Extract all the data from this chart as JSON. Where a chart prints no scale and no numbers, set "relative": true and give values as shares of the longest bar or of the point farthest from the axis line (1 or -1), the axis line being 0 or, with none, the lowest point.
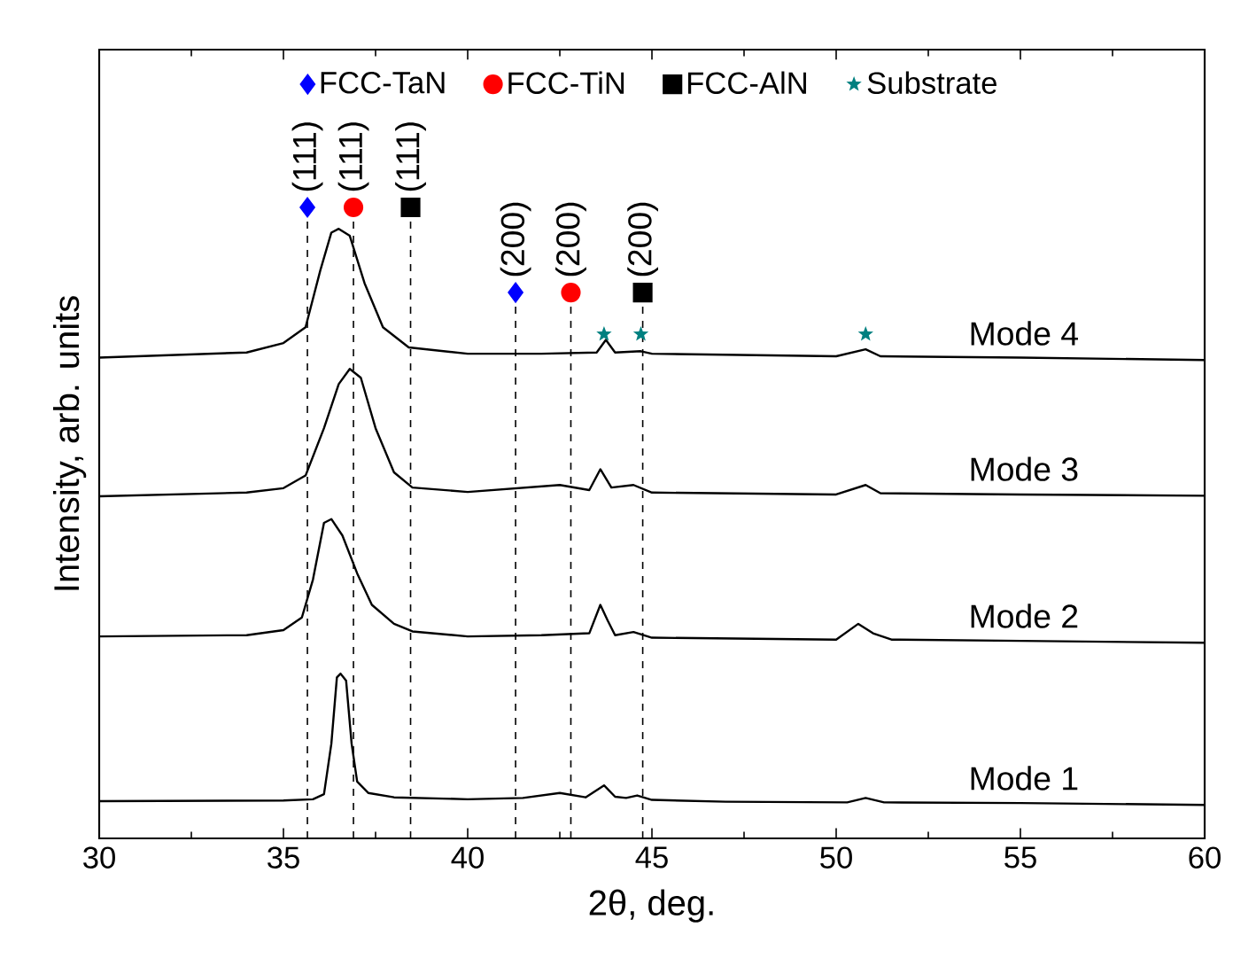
{
  "chart_data": {
    "type": "line",
    "xlabel": "2θ, deg.",
    "ylabel": "Intensity, arb. units",
    "relative": true,
    "xlim": [
      30,
      60
    ],
    "xticks": [
      30,
      35,
      40,
      45,
      50,
      55,
      60
    ],
    "legend": "top",
    "line_style": "solid",
    "series": [
      {
        "name": "Mode 1",
        "color": "#000000",
        "x": [
          30,
          35,
          35.8,
          36.1,
          36.3,
          36.45,
          36.55,
          36.7,
          36.85,
          37.0,
          37.3,
          38,
          40,
          41.5,
          42.5,
          43.2,
          43.7,
          44.0,
          44.3,
          44.6,
          45,
          47,
          50.3,
          50.8,
          51.3,
          55,
          60
        ],
        "values": [
          0.059,
          0.06,
          0.062,
          0.07,
          0.15,
          0.255,
          0.261,
          0.25,
          0.15,
          0.09,
          0.072,
          0.065,
          0.062,
          0.064,
          0.072,
          0.065,
          0.084,
          0.066,
          0.064,
          0.068,
          0.061,
          0.058,
          0.057,
          0.064,
          0.057,
          0.056,
          0.053
        ]
      },
      {
        "name": "Mode 2",
        "color": "#000000",
        "x": [
          30,
          34,
          35,
          35.5,
          35.8,
          36.1,
          36.3,
          36.6,
          37.0,
          37.4,
          38,
          38.5,
          40,
          42,
          43.3,
          43.6,
          43.8,
          44.0,
          44.5,
          45,
          50,
          50.6,
          51.0,
          51.5,
          55,
          60
        ],
        "values": [
          0.32,
          0.322,
          0.33,
          0.35,
          0.41,
          0.5,
          0.506,
          0.48,
          0.42,
          0.37,
          0.34,
          0.328,
          0.32,
          0.322,
          0.325,
          0.37,
          0.345,
          0.322,
          0.327,
          0.318,
          0.315,
          0.34,
          0.325,
          0.315,
          0.313,
          0.31
        ]
      },
      {
        "name": "Mode 3",
        "color": "#000000",
        "x": [
          30,
          34,
          35,
          35.6,
          36.1,
          36.5,
          36.8,
          37.1,
          37.5,
          38,
          38.5,
          40,
          42.5,
          43.3,
          43.6,
          43.9,
          44.5,
          45,
          50,
          50.8,
          51.2,
          55,
          60
        ],
        "values": [
          0.542,
          0.548,
          0.555,
          0.575,
          0.65,
          0.72,
          0.744,
          0.73,
          0.65,
          0.58,
          0.556,
          0.549,
          0.56,
          0.552,
          0.585,
          0.556,
          0.56,
          0.548,
          0.545,
          0.56,
          0.547,
          0.545,
          0.543
        ]
      },
      {
        "name": "Mode 4",
        "color": "#000000",
        "x": [
          30,
          34,
          35,
          35.6,
          36.0,
          36.3,
          36.5,
          36.8,
          37.2,
          37.7,
          38.4,
          40,
          42,
          43.5,
          43.75,
          44.0,
          44.7,
          45,
          50,
          50.8,
          51.2,
          55,
          60
        ],
        "values": [
          0.762,
          0.77,
          0.785,
          0.81,
          0.9,
          0.96,
          0.966,
          0.955,
          0.88,
          0.81,
          0.778,
          0.768,
          0.768,
          0.77,
          0.79,
          0.77,
          0.772,
          0.768,
          0.764,
          0.775,
          0.764,
          0.762,
          0.758
        ]
      },
      {
        "name": "FCC-TaN",
        "type": "scatter",
        "marker": "diamond",
        "color": "#0000ff",
        "x": [
          35.65,
          41.3
        ],
        "values": [
          1.0,
          0.865
        ]
      },
      {
        "name": "FCC-TiN",
        "type": "scatter",
        "marker": "circle",
        "color": "#ff0000",
        "x": [
          36.9,
          42.8
        ],
        "values": [
          1.0,
          0.865
        ]
      },
      {
        "name": "FCC-AlN",
        "type": "scatter",
        "marker": "square",
        "color": "#000000",
        "x": [
          38.45,
          44.75
        ],
        "values": [
          1.0,
          0.865
        ]
      },
      {
        "name": "Substrate",
        "type": "scatter",
        "marker": "star",
        "color": "#008080",
        "x": [
          43.7,
          44.7,
          50.8
        ],
        "values": [
          0.799,
          0.799,
          0.799
        ]
      }
    ],
    "ref_lines": [
      {
        "axis": "x",
        "value": 35.65,
        "line_style": "dashed"
      },
      {
        "axis": "x",
        "value": 36.9,
        "line_style": "dashed"
      },
      {
        "axis": "x",
        "value": 38.45,
        "line_style": "dashed"
      },
      {
        "axis": "x",
        "value": 41.3,
        "line_style": "dashed"
      },
      {
        "axis": "x",
        "value": 42.8,
        "line_style": "dashed"
      },
      {
        "axis": "x",
        "value": 44.75,
        "line_style": "dashed"
      }
    ],
    "annotations": [
      {
        "text": "(111)",
        "x": 35.65,
        "y": 1.0
      },
      {
        "text": "(111)",
        "x": 36.9,
        "y": 1.0
      },
      {
        "text": "(111)",
        "x": 38.45,
        "y": 1.0
      },
      {
        "text": "(200)",
        "x": 41.3,
        "y": 0.865
      },
      {
        "text": "(200)",
        "x": 42.8,
        "y": 0.865
      },
      {
        "text": "(200)",
        "x": 44.75,
        "y": 0.865
      }
    ]
  }
}
